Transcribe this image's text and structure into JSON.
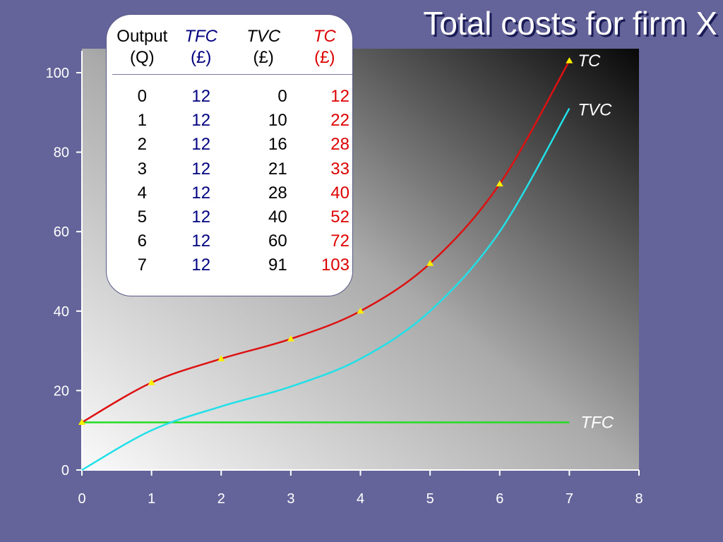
{
  "title": "Total costs for firm X",
  "colors": {
    "background": "#64649a",
    "tc": "#dd1111",
    "tvc": "#22e0e8",
    "tfc": "#22dd22",
    "marker": "#ffee00",
    "tfc_text": "#000080",
    "tc_text": "#dd0000"
  },
  "table": {
    "headers": [
      {
        "line1": "Output",
        "line2": "(Q)"
      },
      {
        "line1": "TFC",
        "line2": "(£)"
      },
      {
        "line1": "TVC",
        "line2": "(£)"
      },
      {
        "line1": "TC",
        "line2": "(£)"
      }
    ],
    "rows": [
      [
        "0",
        "12",
        "0",
        "12"
      ],
      [
        "1",
        "12",
        "10",
        "22"
      ],
      [
        "2",
        "12",
        "16",
        "28"
      ],
      [
        "3",
        "12",
        "21",
        "33"
      ],
      [
        "4",
        "12",
        "28",
        "40"
      ],
      [
        "5",
        "12",
        "40",
        "52"
      ],
      [
        "6",
        "12",
        "60",
        "72"
      ],
      [
        "7",
        "12",
        "91",
        "103"
      ]
    ]
  },
  "chart_data": {
    "type": "line",
    "title": "Total costs for firm X",
    "xlabel": "",
    "ylabel": "",
    "xlim": [
      0,
      8
    ],
    "ylim": [
      0,
      105
    ],
    "x_ticks": [
      0,
      1,
      2,
      3,
      4,
      5,
      6,
      7,
      8
    ],
    "y_ticks": [
      0,
      20,
      40,
      60,
      80,
      100
    ],
    "grid": false,
    "legend": "none",
    "x": [
      0,
      1,
      2,
      3,
      4,
      5,
      6,
      7
    ],
    "series": [
      {
        "name": "TC",
        "values": [
          12,
          22,
          28,
          33,
          40,
          52,
          72,
          103
        ],
        "markers": true
      },
      {
        "name": "TVC",
        "values": [
          0,
          10,
          16,
          21,
          28,
          40,
          60,
          91
        ],
        "markers": false
      },
      {
        "name": "TFC",
        "values": [
          12,
          12,
          12,
          12,
          12,
          12,
          12,
          12
        ],
        "markers": false
      }
    ]
  }
}
